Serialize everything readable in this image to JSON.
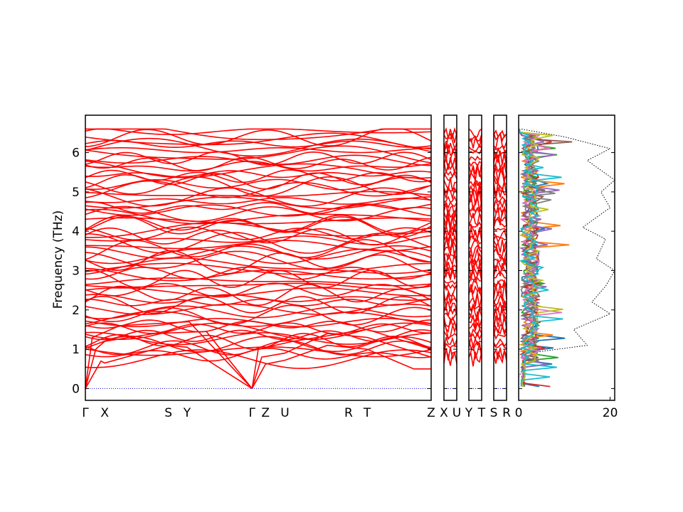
{
  "chart_data": {
    "type": "line",
    "ylabel": "Frequency (THz)",
    "ylim": [
      -0.3,
      6.95
    ],
    "grid": false,
    "band_color": "#ff0000",
    "zero_line_color": "#0000cc",
    "panels": [
      {
        "kind": "band",
        "path_labels": [
          "Γ",
          "X",
          "S",
          "Y",
          "Γ",
          "Z",
          "U",
          "R",
          "T",
          "Z"
        ],
        "label_positions": [
          0,
          0.056,
          0.24,
          0.294,
          0.482,
          0.521,
          0.577,
          0.761,
          0.815,
          1.0
        ],
        "yticks": [
          0,
          1,
          2,
          3,
          4,
          5,
          6
        ]
      },
      {
        "kind": "band",
        "path_labels": [
          "X",
          "U"
        ],
        "label_positions": [
          0,
          1
        ]
      },
      {
        "kind": "band",
        "path_labels": [
          "Y",
          "T"
        ],
        "label_positions": [
          0,
          1
        ]
      },
      {
        "kind": "band",
        "path_labels": [
          "S",
          "R"
        ],
        "label_positions": [
          0,
          1
        ]
      }
    ],
    "dos": {
      "xticks": [
        0,
        20
      ],
      "xlim": [
        0,
        21
      ],
      "total_color": "#000000",
      "series_colors": [
        "#1f77b4",
        "#ff7f0e",
        "#2ca02c",
        "#d62728",
        "#9467bd",
        "#8c564b",
        "#e377c2",
        "#7f7f7f",
        "#bcbd22",
        "#17becf"
      ]
    }
  }
}
